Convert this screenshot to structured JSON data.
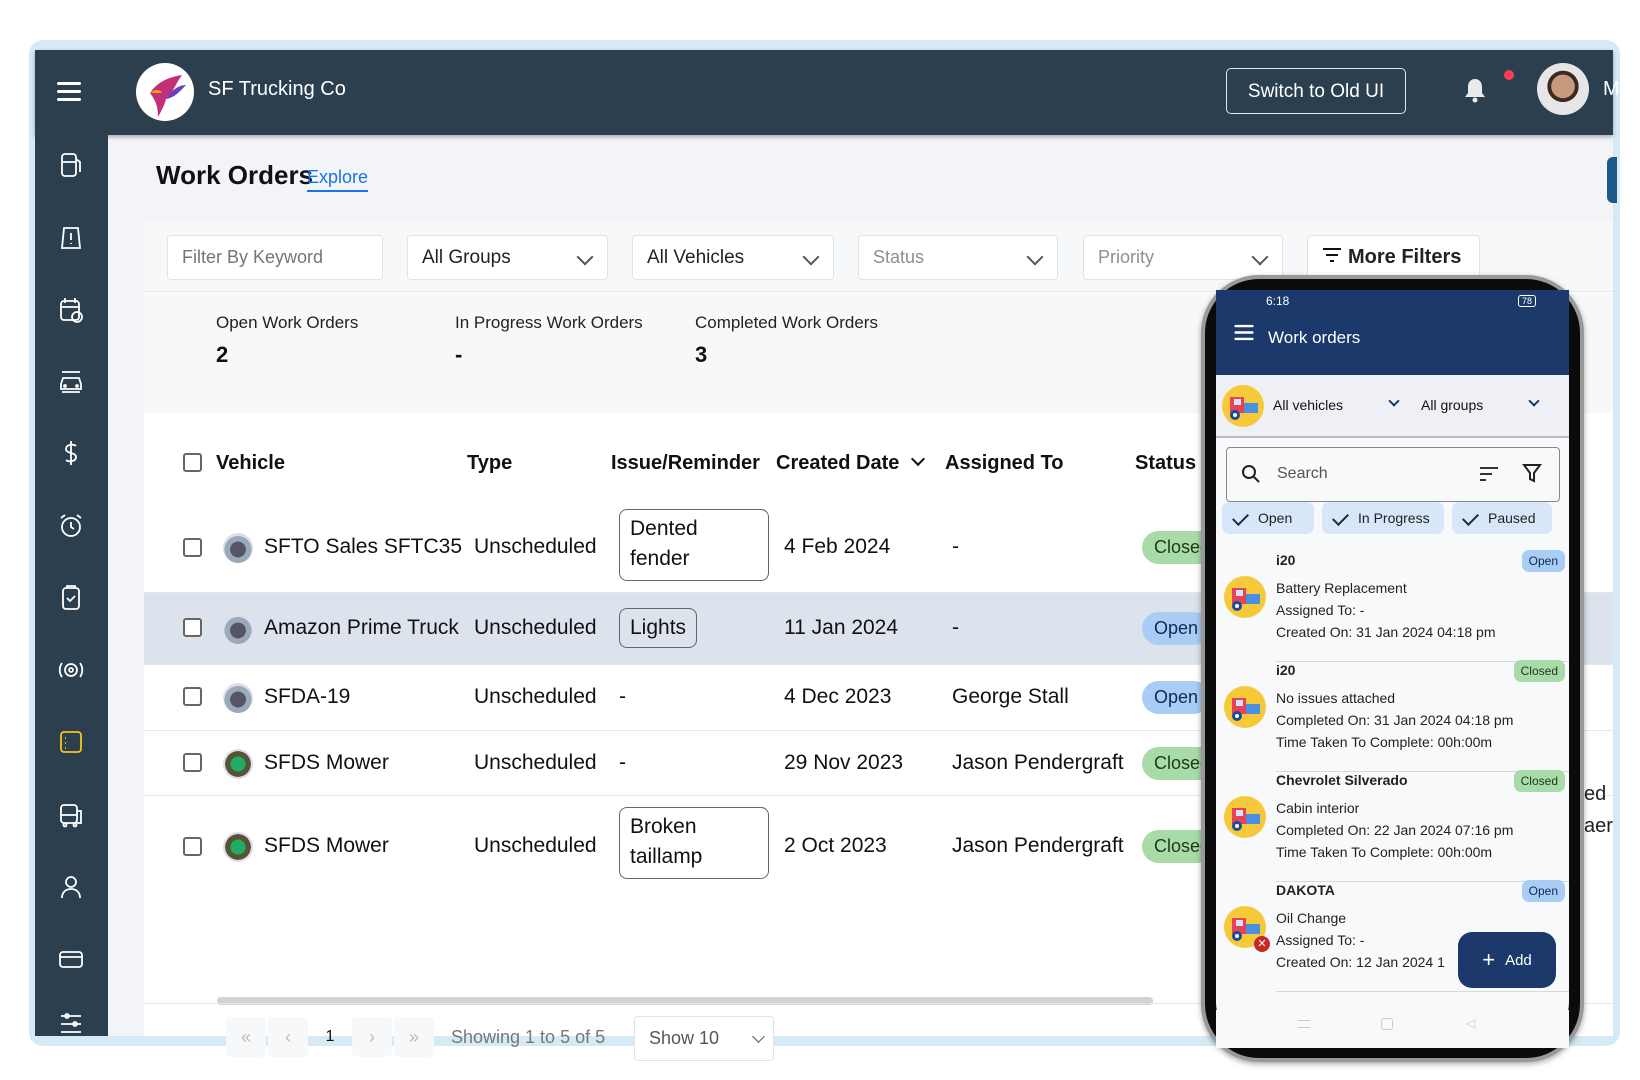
{
  "header": {
    "company": "SF Trucking Co",
    "switch_label": "Switch to Old UI",
    "user_initial": "M"
  },
  "sidebar": {
    "items": [
      "fuel",
      "issues",
      "service-reminders",
      "vehicles",
      "expenses",
      "reminders",
      "inspections",
      "tires",
      "work-orders",
      "vehicle-assignments",
      "contacts",
      "fuel-cards",
      "settings"
    ],
    "active": "work-orders",
    "active_color": "#f5c518"
  },
  "page": {
    "title": "Work Orders",
    "explore": "Explore"
  },
  "filters": {
    "keyword_placeholder": "Filter By Keyword",
    "groups": "All Groups",
    "vehicles": "All Vehicles",
    "status_placeholder": "Status",
    "priority_placeholder": "Priority",
    "more_filters": "More Filters"
  },
  "stats": [
    {
      "label": "Open Work Orders",
      "value": "2"
    },
    {
      "label": "In Progress Work Orders",
      "value": "-"
    },
    {
      "label": "Completed Work Orders",
      "value": "3"
    }
  ],
  "table": {
    "columns": [
      "Vehicle",
      "Type",
      "Issue/Reminder",
      "Created Date",
      "Assigned To",
      "Status"
    ],
    "sorted_by": "Created Date",
    "rows": [
      {
        "vehicle": "SFTO Sales SFTC35",
        "type": "Unscheduled",
        "issue": "Dented fender",
        "issue_l1": "Dented",
        "issue_l2": "fender",
        "created": "4 Feb 2024",
        "assigned": "-",
        "status": "Closed"
      },
      {
        "vehicle": "Amazon Prime Truck",
        "type": "Unscheduled",
        "issue": "Lights",
        "created": "11 Jan 2024",
        "assigned": "-",
        "status": "Open"
      },
      {
        "vehicle": "SFDA-19",
        "type": "Unscheduled",
        "issue": "-",
        "created": "4 Dec 2023",
        "assigned": "George Stall",
        "status": "Open"
      },
      {
        "vehicle": "SFDS Mower",
        "type": "Unscheduled",
        "issue": "-",
        "created": "29 Nov 2023",
        "assigned": "Jason Pendergraft",
        "status": "Closed"
      },
      {
        "vehicle": "SFDS Mower",
        "type": "Unscheduled",
        "issue": "Broken taillamp",
        "issue_l1": "Broken",
        "issue_l2": "taillamp",
        "created": "2 Oct 2023",
        "assigned": "Jason Pendergraft",
        "status": "Closed"
      }
    ]
  },
  "pagination": {
    "first": "«",
    "prev": "‹",
    "page": "1",
    "next": "›",
    "last": "»",
    "showing": "Showing 1 to 5 of 5",
    "page_size": "Show 10"
  },
  "hidden_fragments": [
    "ed",
    "aer"
  ],
  "colors": {
    "header": "#2b3f4e",
    "closed": "#a9dba9",
    "open": "#a9cdf5",
    "phone_bar": "#1b3a6b"
  },
  "phone": {
    "status_time": "6:18",
    "battery": "78",
    "title": "Work orders",
    "vehicles_filter": "All vehicles",
    "groups_filter": "All groups",
    "search_placeholder": "Search",
    "chips": [
      "Open",
      "In Progress",
      "Paused"
    ],
    "items": [
      {
        "title": "i20",
        "status": "Open",
        "l1": "Battery Replacement",
        "l2": "Assigned To: -",
        "l3": "Created On: 31 Jan 2024 04:18 pm"
      },
      {
        "title": "i20",
        "status": "Closed",
        "l1": "No issues attached",
        "l2": "Completed On: 31 Jan 2024 04:18 pm",
        "l3": "Time Taken To Complete: 00h:00m"
      },
      {
        "title": "Chevrolet Silverado",
        "status": "Closed",
        "l1": "Cabin interior",
        "l2": "Completed On: 22 Jan 2024 07:16 pm",
        "l3": "Time Taken To Complete: 00h:00m"
      },
      {
        "title": "DAKOTA",
        "status": "Open",
        "l1": "Oil Change",
        "l2": "Assigned To: -",
        "l3": "Created On: 12 Jan 2024 1"
      }
    ],
    "add_label": "Add"
  }
}
